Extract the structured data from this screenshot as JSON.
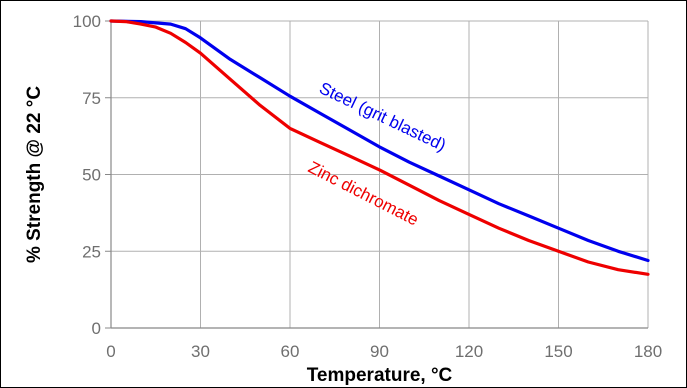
{
  "chart_data": {
    "type": "line",
    "title": "",
    "xlabel": "Temperature, °C",
    "ylabel": "% Strength @ 22 °C",
    "xlim": [
      0,
      180
    ],
    "ylim": [
      0,
      100
    ],
    "x_ticks": [
      0,
      30,
      60,
      90,
      120,
      150,
      180
    ],
    "y_ticks": [
      0,
      25,
      50,
      75,
      100
    ],
    "grid": true,
    "legend": "inline labels on curves",
    "series": [
      {
        "name": "Steel (grit blasted)",
        "color": "#0000ee",
        "x": [
          0,
          10,
          20,
          25,
          30,
          40,
          50,
          60,
          70,
          80,
          90,
          100,
          110,
          120,
          130,
          140,
          150,
          160,
          170,
          180
        ],
        "y": [
          100,
          99.8,
          99,
          97.5,
          94.5,
          87.5,
          81.5,
          75.5,
          70,
          64.5,
          59,
          54,
          49.5,
          45,
          40.5,
          36.5,
          32.5,
          28.5,
          25,
          22
        ]
      },
      {
        "name": "Zinc dichromate",
        "color": "#ee0000",
        "x": [
          0,
          5,
          10,
          15,
          20,
          25,
          30,
          40,
          50,
          60,
          70,
          80,
          90,
          100,
          110,
          120,
          130,
          140,
          150,
          160,
          170,
          180
        ],
        "y": [
          100,
          99.8,
          99,
          98,
          96,
          93,
          89.5,
          81,
          72.5,
          65,
          60.5,
          56,
          51.5,
          46.5,
          41.5,
          37,
          32.5,
          28.5,
          25,
          21.5,
          19,
          17.5
        ]
      }
    ]
  }
}
